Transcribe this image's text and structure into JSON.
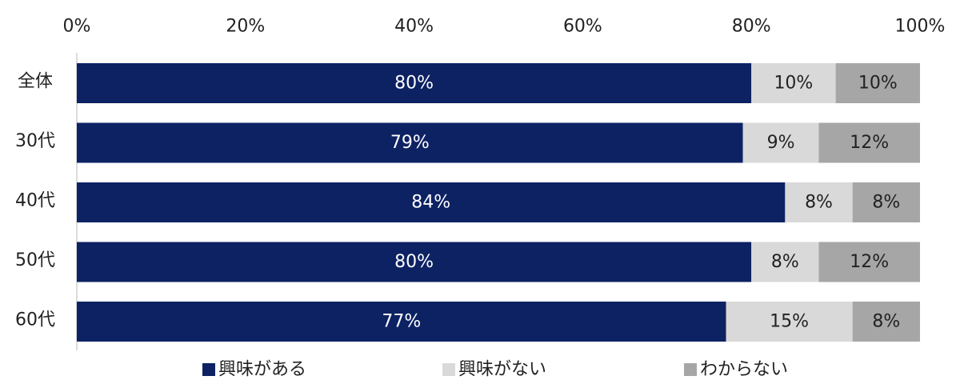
{
  "chart_data": {
    "type": "bar",
    "orientation": "horizontal",
    "stacked": true,
    "percent_stacked": true,
    "title": "",
    "xlabel": "",
    "ylabel": "",
    "xlim": [
      0,
      100
    ],
    "x_ticks": [
      "0%",
      "20%",
      "40%",
      "60%",
      "80%",
      "100%"
    ],
    "categories": [
      "全体",
      "30代",
      "40代",
      "50代",
      "60代"
    ],
    "series": [
      {
        "name": "興味がある",
        "color": "#0d2263",
        "label_color": "#ffffff",
        "values": [
          80,
          79,
          84,
          80,
          77
        ],
        "labels": [
          "80%",
          "79%",
          "84%",
          "80%",
          "77%"
        ]
      },
      {
        "name": "興味がない",
        "color": "#d9d9d9",
        "label_color": "#222222",
        "values": [
          10,
          9,
          8,
          8,
          15
        ],
        "labels": [
          "10%",
          "9%",
          "8%",
          "8%",
          "15%"
        ]
      },
      {
        "name": "わからない",
        "color": "#a6a6a6",
        "label_color": "#222222",
        "values": [
          10,
          12,
          8,
          12,
          8
        ],
        "labels": [
          "10%",
          "12%",
          "8%",
          "12%",
          "8%"
        ]
      }
    ],
    "grid": false,
    "legend_position": "bottom"
  }
}
